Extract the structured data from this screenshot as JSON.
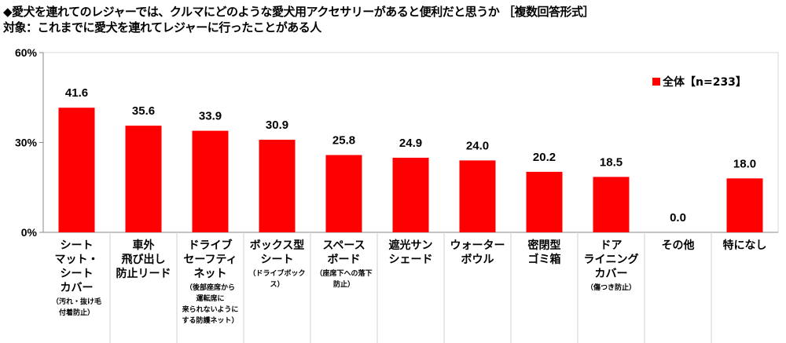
{
  "title": "◆愛犬を連れてのレジャーでは、クルマにどのような愛犬用アクセサリーがあると便利だと思うか ［複数回答形式］",
  "subtitle": "対象：これまでに愛犬を連れてレジャーに行ったことがある人",
  "chart_data": {
    "type": "bar",
    "title": "◆愛犬を連れてのレジャーでは、クルマにどのような愛犬用アクセサリーがあると便利だと思うか ［複数回答形式］",
    "categories": [
      {
        "label": "シート\nマット・\nシート\nカバー",
        "note": "（汚れ・抜け毛\n付着防止）"
      },
      {
        "label": "車外\n飛び出し\n防止リード",
        "note": ""
      },
      {
        "label": "ドライブ\nセーフティ\nネット",
        "note": "（後部座席から\n運転席に\n来られないように\nする防護ネット）"
      },
      {
        "label": "ボックス型\nシート",
        "note": "（ドライブボックス）"
      },
      {
        "label": "スペース\nボード",
        "note": "（座席下への落下\n防止）"
      },
      {
        "label": "遮光サン\nシェード",
        "note": ""
      },
      {
        "label": "ウォーター\nボウル",
        "note": ""
      },
      {
        "label": "密閉型\nゴミ箱",
        "note": ""
      },
      {
        "label": "ドア\nライニング\nカバー",
        "note": "（傷つき防止）"
      },
      {
        "label": "その他",
        "note": ""
      },
      {
        "label": "特になし",
        "note": ""
      }
    ],
    "series": [
      {
        "name": "全体【n=233】",
        "color": "#ff0000",
        "values": [
          41.6,
          35.6,
          33.9,
          30.9,
          25.8,
          24.9,
          24.0,
          20.2,
          18.5,
          0.0,
          18.0
        ]
      }
    ],
    "yticks": [
      "0%",
      "30%",
      "60%"
    ],
    "ylim": [
      0,
      60
    ],
    "legend": "top-right",
    "xlabel": "",
    "ylabel": ""
  }
}
